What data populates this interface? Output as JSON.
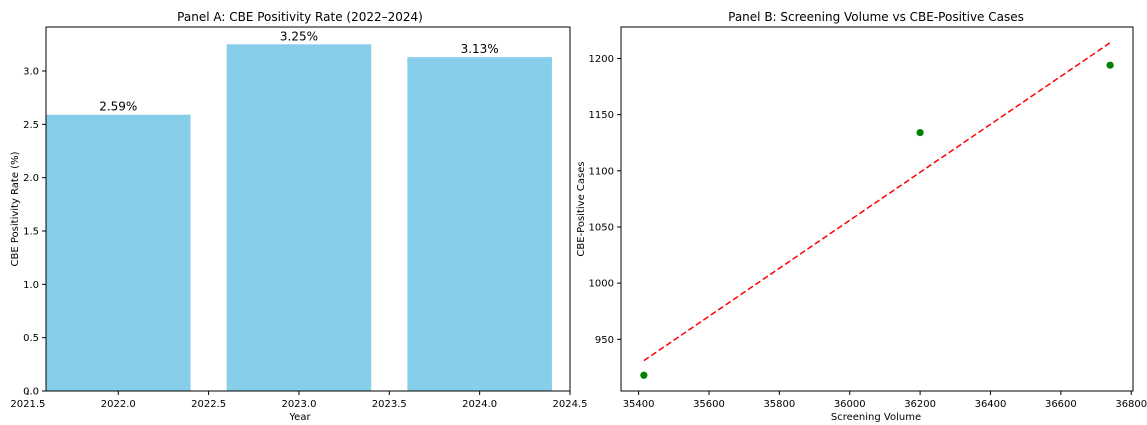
{
  "chart_data": [
    {
      "panel": "A",
      "type": "bar",
      "title": "Panel A: CBE Positivity Rate (2022–2024)",
      "xlabel": "Year",
      "ylabel": "CBE Positivity Rate (%)",
      "x": [
        2022,
        2023,
        2024
      ],
      "values": [
        2.59,
        3.25,
        3.13
      ],
      "data_labels": [
        "2.59%",
        "3.25%",
        "3.13%"
      ],
      "bar_color": "#87ceeb",
      "xlim": [
        2021.6,
        2024.5
      ],
      "ylim": [
        0,
        3.4125
      ],
      "xticks": [
        2021.5,
        2022.0,
        2022.5,
        2023.0,
        2023.5,
        2024.0,
        2024.5
      ],
      "xtick_labels": [
        "2021.5",
        "2022.0",
        "2022.5",
        "2023.0",
        "2023.5",
        "2024.0",
        "2024.5"
      ],
      "yticks": [
        0,
        0.5,
        1.0,
        1.5,
        2.0,
        2.5,
        3.0
      ],
      "ytick_labels": [
        "0.0",
        "0.5",
        "1.0",
        "1.5",
        "2.0",
        "2.5",
        "3.0"
      ],
      "grid": false
    },
    {
      "panel": "B",
      "type": "scatter",
      "title": "Panel B: Screening Volume vs CBE-Positive Cases",
      "xlabel": "Screening Volume",
      "ylabel": "CBE-Positive Cases",
      "x": [
        35415,
        36200,
        36740
      ],
      "y": [
        918,
        1134,
        1194
      ],
      "point_color": "#008000",
      "trendline": {
        "x": [
          35415,
          36740
        ],
        "y": [
          931,
          1214
        ],
        "color": "#ff0000",
        "style": "dashed"
      },
      "xlim": [
        35350,
        36805
      ],
      "ylim": [
        904,
        1228
      ],
      "xticks": [
        35400,
        35600,
        35800,
        36000,
        36200,
        36400,
        36600,
        36800
      ],
      "xtick_labels": [
        "35400",
        "35600",
        "35800",
        "36000",
        "36200",
        "36400",
        "36600",
        "36800"
      ],
      "yticks": [
        950,
        1000,
        1050,
        1100,
        1150,
        1200
      ],
      "ytick_labels": [
        "950",
        "1000",
        "1050",
        "1100",
        "1150",
        "1200"
      ],
      "grid": false
    }
  ]
}
